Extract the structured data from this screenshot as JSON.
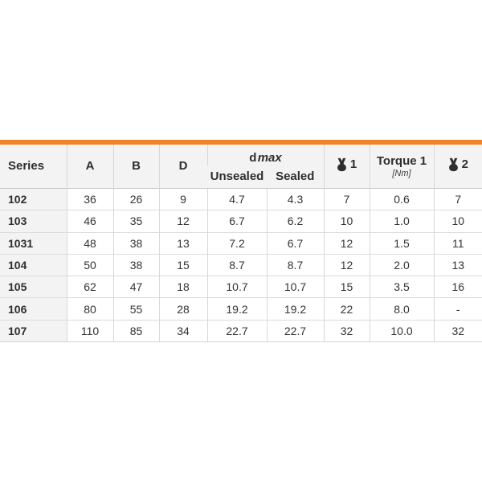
{
  "page": {
    "background_color": "#ffffff"
  },
  "table": {
    "accent_color": "#ef8329",
    "header_bg_color": "#f3f3f3",
    "icons": {
      "wrench1": "wrench-icon",
      "wrench2": "wrench-icon"
    },
    "columns": {
      "series": "Series",
      "a": "A",
      "b": "B",
      "d": "D",
      "dmax_label": "d",
      "dmax_label_italic": "max",
      "unsealed": "Unsealed",
      "sealed": "Sealed",
      "wrench1_num": "1",
      "torque_title": "Torque 1",
      "torque_unit": "[Nm]",
      "wrench2_num": "2"
    },
    "rows": [
      [
        "102",
        "36",
        "26",
        "9",
        "4.7",
        "4.3",
        "7",
        "0.6",
        "7"
      ],
      [
        "103",
        "46",
        "35",
        "12",
        "6.7",
        "6.2",
        "10",
        "1.0",
        "10"
      ],
      [
        "1031",
        "48",
        "38",
        "13",
        "7.2",
        "6.7",
        "12",
        "1.5",
        "11"
      ],
      [
        "104",
        "50",
        "38",
        "15",
        "8.7",
        "8.7",
        "12",
        "2.0",
        "13"
      ],
      [
        "105",
        "62",
        "47",
        "18",
        "10.7",
        "10.7",
        "15",
        "3.5",
        "16"
      ],
      [
        "106",
        "80",
        "55",
        "28",
        "19.2",
        "19.2",
        "22",
        "8.0",
        "-"
      ],
      [
        "107",
        "110",
        "85",
        "34",
        "22.7",
        "22.7",
        "32",
        "10.0",
        "32"
      ]
    ]
  }
}
